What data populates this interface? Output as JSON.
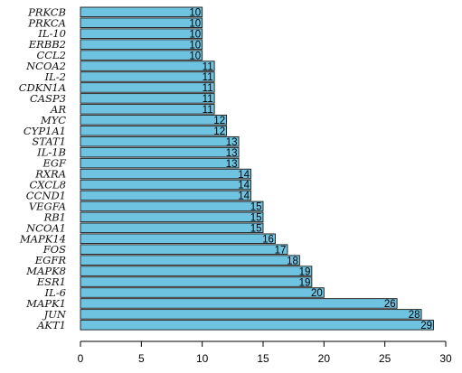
{
  "chart_data": {
    "type": "bar",
    "orientation": "horizontal",
    "categories": [
      "PRKCB",
      "PRKCA",
      "IL-10",
      "ERBB2",
      "CCL2",
      "NCOA2",
      "IL-2",
      "CDKN1A",
      "CASP3",
      "AR",
      "MYC",
      "CYP1A1",
      "STAT1",
      "IL-1B",
      "EGF",
      "RXRA",
      "CXCL8",
      "CCND1",
      "VEGFA",
      "RB1",
      "NCOA1",
      "MAPK14",
      "FOS",
      "EGFR",
      "MAPK8",
      "ESR1",
      "IL-6",
      "MAPK1",
      "JUN",
      "AKT1"
    ],
    "values": [
      10,
      10,
      10,
      10,
      10,
      11,
      11,
      11,
      11,
      11,
      12,
      12,
      13,
      13,
      13,
      14,
      14,
      14,
      15,
      15,
      15,
      16,
      17,
      18,
      19,
      19,
      20,
      26,
      28,
      29
    ],
    "xlim": [
      0,
      30
    ],
    "xticks": [
      0,
      5,
      10,
      15,
      20,
      25,
      30
    ],
    "bar_color": "#6ec3e0",
    "bar_edge_color": "#1a1a1a",
    "value_labels": true,
    "grid": false,
    "legend": "none"
  }
}
